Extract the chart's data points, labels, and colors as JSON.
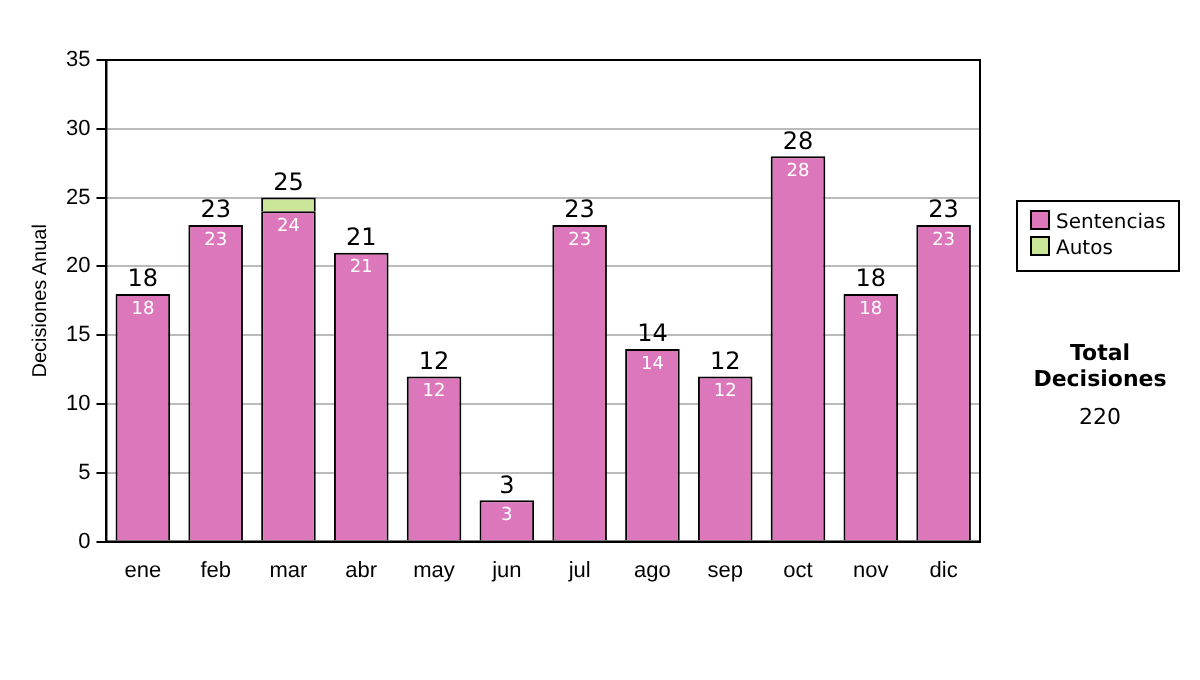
{
  "chart_data": {
    "type": "bar",
    "stacked": true,
    "ylabel": "Decisiones Anual",
    "categories": [
      "ene",
      "feb",
      "mar",
      "abr",
      "may",
      "jun",
      "jul",
      "ago",
      "sep",
      "oct",
      "nov",
      "dic"
    ],
    "series": [
      {
        "name": "Sentencias",
        "color": "#dd77bb",
        "values": [
          18,
          23,
          24,
          21,
          12,
          3,
          23,
          14,
          12,
          28,
          18,
          23
        ],
        "value_labels": [
          "18",
          "23",
          "24",
          "21",
          "12",
          "3",
          "23",
          "14",
          "12",
          "28",
          "18",
          "23"
        ]
      },
      {
        "name": "Autos",
        "color": "#cce699",
        "values": [
          0,
          0,
          1,
          0,
          0,
          0,
          0,
          0,
          0,
          0,
          0,
          0
        ]
      }
    ],
    "totals": [
      "18",
      "23",
      "25",
      "21",
      "12",
      "3",
      "23",
      "14",
      "12",
      "28",
      "18",
      "23"
    ],
    "ylim": [
      0,
      35
    ],
    "yticks": [
      0,
      5,
      10,
      15,
      20,
      25,
      30,
      35
    ],
    "grid": "y",
    "legend": "right",
    "annotations": [
      "Total Decisiones",
      "220"
    ]
  }
}
